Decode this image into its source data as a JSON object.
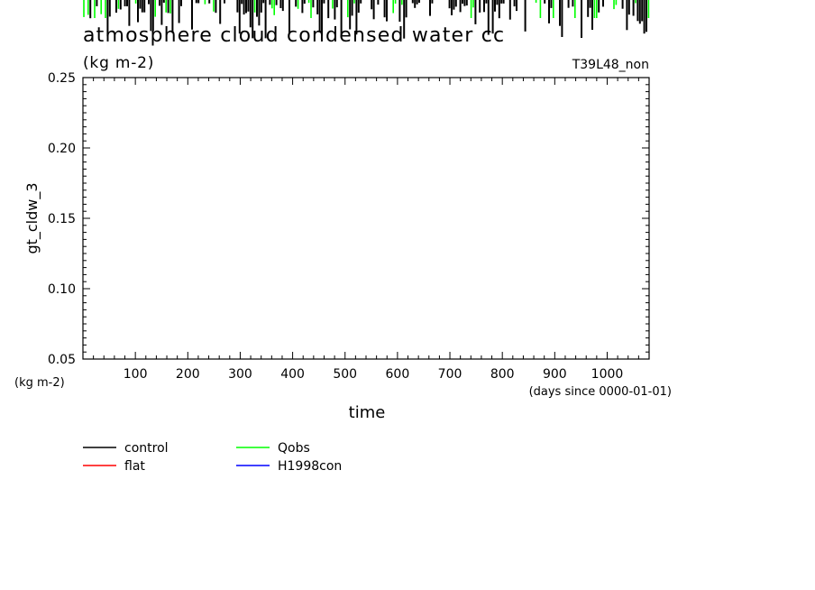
{
  "chart_data": {
    "type": "line",
    "title": "atmosphere cloud condensed water cc",
    "units_label": "(kg m-2)",
    "run_label": "T39L48_non",
    "ylabel": "gt_cldw_3",
    "y_units": "(kg m-2)",
    "xlabel": "time",
    "x_units": "(days since 0000-01-01)",
    "xlim": [
      0,
      1080
    ],
    "ylim": [
      0.05,
      0.25
    ],
    "x_ticks": [
      100,
      200,
      300,
      400,
      500,
      600,
      700,
      800,
      900,
      1000
    ],
    "x_tick_labels": [
      "100",
      "200",
      "300",
      "400",
      "500",
      "600",
      "700",
      "800",
      "900",
      "1000"
    ],
    "y_ticks": [
      0.05,
      0.1,
      0.15,
      0.2,
      0.25
    ],
    "y_tick_labels": [
      "0.05",
      "0.10",
      "0.15",
      "0.20",
      "0.25"
    ],
    "grid": false,
    "legend_position": "bottom-left",
    "series": [
      {
        "name": "control",
        "color": "#000000",
        "values": []
      },
      {
        "name": "flat",
        "color": "#ff0000",
        "values": []
      },
      {
        "name": "Qobs",
        "color": "#00ff00",
        "values": []
      },
      {
        "name": "H1998con",
        "color": "#0000ff",
        "values": []
      }
    ]
  }
}
